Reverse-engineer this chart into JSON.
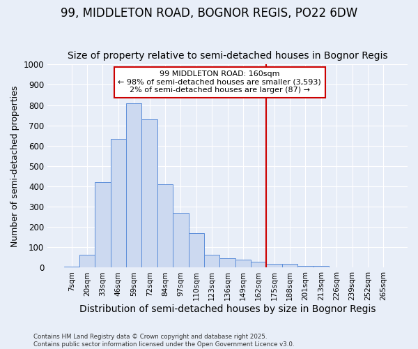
{
  "title1": "99, MIDDLETON ROAD, BOGNOR REGIS, PO22 6DW",
  "title2": "Size of property relative to semi-detached houses in Bognor Regis",
  "xlabel": "Distribution of semi-detached houses by size in Bognor Regis",
  "ylabel": "Number of semi-detached properties",
  "categories": [
    "7sqm",
    "20sqm",
    "33sqm",
    "46sqm",
    "59sqm",
    "72sqm",
    "84sqm",
    "97sqm",
    "110sqm",
    "123sqm",
    "136sqm",
    "149sqm",
    "162sqm",
    "175sqm",
    "188sqm",
    "201sqm",
    "213sqm",
    "226sqm",
    "239sqm",
    "252sqm",
    "265sqm"
  ],
  "values": [
    5,
    65,
    420,
    635,
    810,
    730,
    410,
    270,
    170,
    65,
    45,
    40,
    30,
    18,
    18,
    8,
    10,
    2,
    2,
    2,
    2
  ],
  "bar_color": "#ccd9f0",
  "bar_edge_color": "#5b8dd9",
  "vline_color": "#cc0000",
  "vline_x": 12.5,
  "annotation_text": "99 MIDDLETON ROAD: 160sqm\n← 98% of semi-detached houses are smaller (3,593)\n2% of semi-detached houses are larger (87) →",
  "ylim": [
    0,
    1000
  ],
  "yticks": [
    0,
    100,
    200,
    300,
    400,
    500,
    600,
    700,
    800,
    900,
    1000
  ],
  "footer": "Contains HM Land Registry data © Crown copyright and database right 2025.\nContains public sector information licensed under the Open Government Licence v3.0.",
  "bg_color": "#e8eef8",
  "grid_color": "#ffffff",
  "title1_fontsize": 12,
  "title2_fontsize": 10,
  "ylabel_fontsize": 9,
  "xlabel_fontsize": 10
}
